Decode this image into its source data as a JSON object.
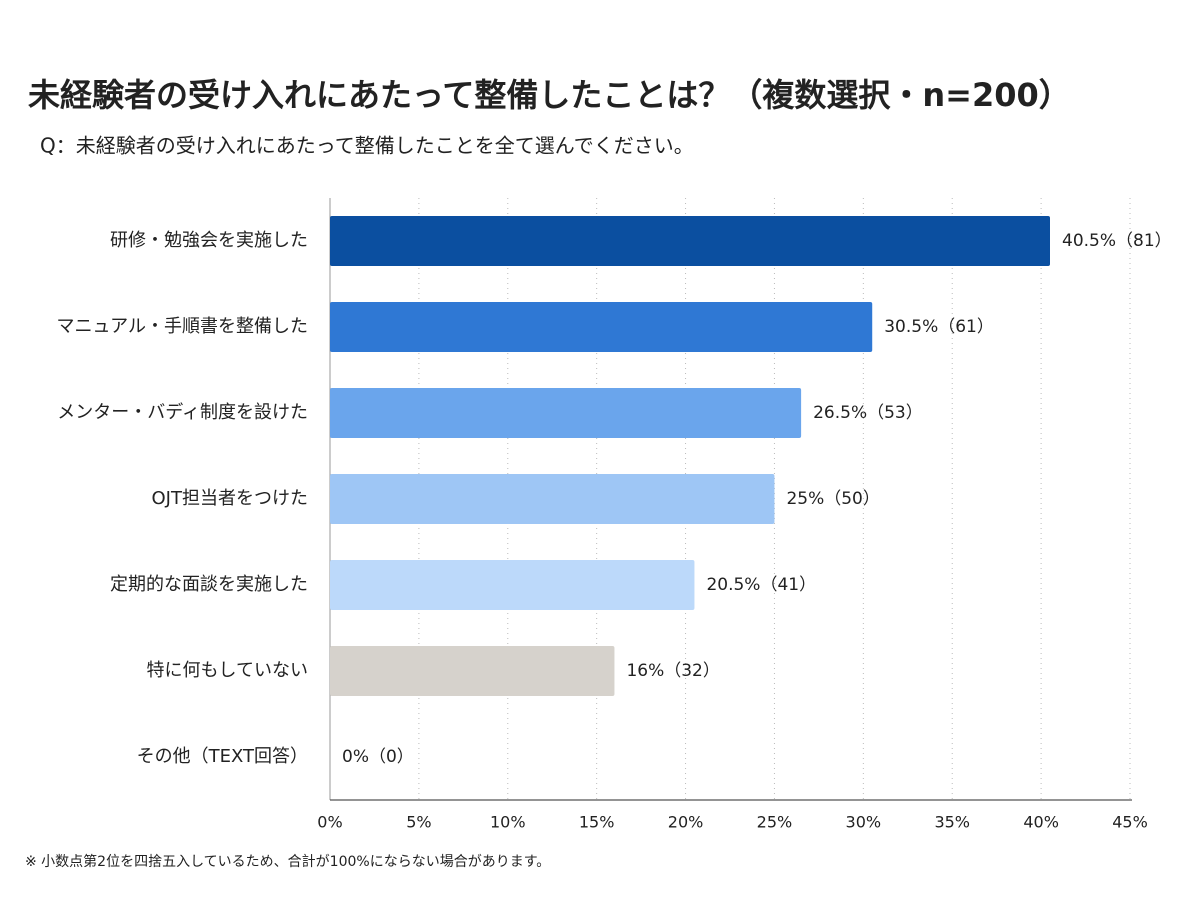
{
  "chart_data": {
    "type": "bar",
    "orientation": "horizontal",
    "title": "未経験者の受け入れにあたって整備したことは？（複数選択・n=200）",
    "subtitle": "Q：未経験者の受け入れにあたって整備したことを全て選んでください。",
    "footnote": "※ 小数点第2位を四捨五入しているため、合計が100%にならない場合があります。",
    "categories": [
      "研修・勉強会を実施した",
      "マニュアル・手順書を整備した",
      "メンター・バディ制度を設けた",
      "OJT担当者をつけた",
      "定期的な面談を実施した",
      "特に何もしていない",
      "その他（TEXT回答）"
    ],
    "values": [
      40.5,
      30.5,
      26.5,
      25,
      20.5,
      16,
      0
    ],
    "value_labels": [
      "40.5%（81）",
      "30.5%（61）",
      "26.5%（53）",
      "25%（50）",
      "20.5%（41）",
      "16%（32）",
      "0%（0）"
    ],
    "colors": [
      "#0b4fa0",
      "#2f78d4",
      "#6aa5ec",
      "#9ec6f5",
      "#bcd9fa",
      "#d6d2cc",
      "#c9ddf7"
    ],
    "xlim": [
      0,
      45
    ],
    "xticks": [
      {
        "value": 0,
        "label": "0%"
      },
      {
        "value": 5,
        "label": "5%"
      },
      {
        "value": 10,
        "label": "10%"
      },
      {
        "value": 15,
        "label": "15%"
      },
      {
        "value": 20,
        "label": "20%"
      },
      {
        "value": 25,
        "label": "25%"
      },
      {
        "value": 30,
        "label": "30%"
      },
      {
        "value": 35,
        "label": "35%"
      },
      {
        "value": 40,
        "label": "40%"
      },
      {
        "value": 45,
        "label": "45%"
      }
    ],
    "grid": true
  }
}
